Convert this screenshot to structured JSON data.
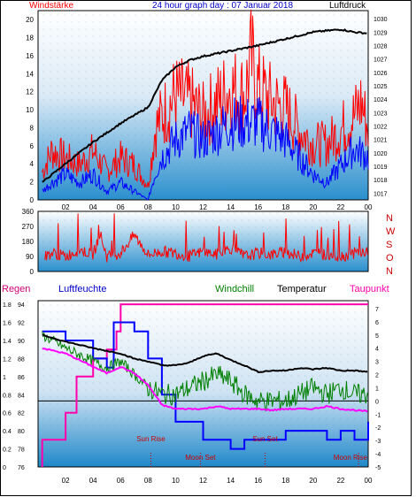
{
  "header": {
    "left_label": "Windstärke",
    "title": "24 hour graph day : 07 Januar 2018",
    "right_label": "Luftdruck"
  },
  "bottom_header": {
    "regen": "Regen",
    "luftfeuchte": "Luftfeuchte",
    "windchill": "Windchill",
    "temperatur": "Temperatur",
    "taupunkt": "Taupunkt"
  },
  "colors": {
    "wind_gust": "#ff0000",
    "wind_avg": "#0000ff",
    "pressure": "#000000",
    "wind_dir": "#ff0000",
    "regen": "#ff00aa",
    "luftfeuchte": "#0000ff",
    "windchill": "#008000",
    "temperatur": "#000000",
    "taupunkt": "#ff00ff",
    "sun_moon": "#cc0000",
    "panel_top": "#ffffff",
    "panel_bottom": "#1a86c8"
  },
  "chart_data": [
    {
      "type": "line",
      "name": "wind-pressure",
      "x_ticks": [
        "02",
        "04",
        "06",
        "08",
        "10",
        "12",
        "14",
        "16",
        "18",
        "20",
        "22",
        "00"
      ],
      "y_left_ticks": [
        "0",
        "2",
        "4",
        "6",
        "8",
        "10",
        "12",
        "14",
        "16",
        "18",
        "20"
      ],
      "y_left_range": [
        0,
        21
      ],
      "y_right_ticks": [
        "1017",
        "1018",
        "1019",
        "1020",
        "1021",
        "1022",
        "1023",
        "1024",
        "1025",
        "1026",
        "1027",
        "1028",
        "1029",
        "1030"
      ],
      "y_right_range": [
        1016.5,
        1030.6
      ],
      "x_range": [
        0,
        24
      ],
      "pressure": {
        "x": [
          0.3,
          2,
          4,
          6,
          8,
          9,
          10,
          11,
          12,
          14,
          16,
          18,
          20,
          22,
          23,
          24
        ],
        "y": [
          1017.8,
          1019.2,
          1020.8,
          1022.2,
          1023.4,
          1025.4,
          1026.4,
          1026.9,
          1027.2,
          1027.6,
          1028.0,
          1028.5,
          1029.0,
          1029.2,
          1029.0,
          1028.9
        ]
      },
      "wind_gust": {
        "x": [
          0.3,
          1,
          2,
          3,
          4,
          5,
          6,
          7,
          8,
          8.5,
          9,
          10,
          11,
          12,
          13,
          14,
          15,
          15.5,
          16,
          17,
          18,
          19,
          20,
          21,
          22,
          23,
          23.5,
          24
        ],
        "y": [
          4,
          7,
          6,
          5,
          7,
          4,
          6,
          5,
          2,
          10,
          12,
          15,
          14,
          12,
          14,
          16,
          15,
          20,
          16,
          14,
          13,
          10,
          8,
          8,
          10,
          12,
          14,
          10
        ]
      },
      "wind_avg": {
        "x": [
          0.3,
          1,
          2,
          3,
          4,
          5,
          6,
          7,
          8,
          8.5,
          9,
          10,
          11,
          12,
          13,
          14,
          15,
          16,
          17,
          18,
          19,
          20,
          21,
          22,
          23,
          24
        ],
        "y": [
          1,
          2,
          3,
          2,
          3,
          1,
          2,
          1,
          0,
          3,
          5,
          7,
          8,
          7,
          8,
          9,
          9,
          9,
          8,
          7,
          5,
          3,
          2,
          4,
          6,
          5
        ]
      }
    },
    {
      "type": "scatter",
      "name": "wind-direction",
      "y_ticks": [
        "0",
        "90",
        "180",
        "270",
        "360"
      ],
      "y_range": [
        0,
        360
      ],
      "compass_labels": [
        "N",
        "W",
        "S",
        "O",
        "N"
      ],
      "x": [
        0.5,
        1,
        2,
        3,
        4,
        4.5,
        5,
        6,
        7,
        8,
        9,
        10,
        11,
        12,
        13,
        14,
        15,
        16,
        17,
        18,
        19,
        20,
        21,
        22,
        23,
        24
      ],
      "y": [
        90,
        110,
        90,
        130,
        100,
        230,
        90,
        110,
        220,
        100,
        120,
        110,
        90,
        120,
        100,
        140,
        90,
        110,
        100,
        120,
        90,
        110,
        100,
        90,
        110,
        120
      ]
    },
    {
      "type": "line",
      "name": "temperature-humidity",
      "y_regen_ticks": [
        "0",
        "0.2",
        "0.4",
        "0.6",
        "0.8",
        "1",
        "1.2",
        "1.4",
        "1.6",
        "1.8"
      ],
      "y_regen_range": [
        0,
        1.84
      ],
      "y_humidity_ticks": [
        "76",
        "78",
        "80",
        "82",
        "84",
        "86",
        "88",
        "90",
        "92",
        "94"
      ],
      "y_humidity_range": [
        76,
        94.4
      ],
      "y_temp_ticks": [
        "-5",
        "-4",
        "-3",
        "-2",
        "-1",
        "0",
        "1",
        "2",
        "3",
        "4",
        "5",
        "6",
        "7"
      ],
      "y_temp_range": [
        -5,
        7.6
      ],
      "regen": {
        "x": [
          0.3,
          0.7,
          2,
          2.8,
          4,
          5,
          5.7,
          6,
          24
        ],
        "y": [
          0.3,
          0.3,
          0.6,
          1,
          1.2,
          1.3,
          1.5,
          1.8,
          1.8
        ]
      },
      "luftfeuchte": {
        "x": [
          0.3,
          2,
          4,
          5,
          5.5,
          6,
          7,
          8,
          9,
          10,
          11,
          12,
          13,
          14,
          15,
          16,
          17,
          18,
          19,
          20,
          21,
          22,
          23,
          24
        ],
        "y": [
          91,
          90,
          88,
          87,
          92,
          92,
          91,
          88,
          84,
          81,
          81,
          79,
          79,
          78,
          79,
          79,
          79,
          80,
          80,
          80,
          79,
          80,
          79,
          81
        ]
      },
      "windchill": {
        "x": [
          0.3,
          2,
          4,
          5,
          6,
          7,
          8,
          9,
          10,
          11,
          12,
          13,
          14,
          15,
          16,
          17,
          18,
          19,
          20,
          21,
          22,
          23,
          24
        ],
        "y": [
          5,
          4,
          3,
          2.5,
          3,
          2,
          1,
          0.5,
          0.5,
          1,
          1.5,
          2,
          1.5,
          0.5,
          0,
          0,
          0,
          0.5,
          1,
          0.5,
          1,
          0.5,
          0.5
        ]
      },
      "temperatur": {
        "x": [
          0.3,
          2,
          4,
          6,
          7,
          8,
          9,
          10,
          11,
          12,
          13,
          14,
          15,
          16,
          17,
          18,
          19,
          20,
          21,
          22,
          23,
          24
        ],
        "y": [
          5,
          4.5,
          4,
          3.6,
          3.2,
          3,
          2.7,
          2.7,
          2.9,
          3.4,
          3.6,
          3.1,
          2.7,
          2.2,
          2.3,
          2.3,
          2.5,
          2.4,
          2.5,
          2.3,
          2.3,
          2.2
        ]
      },
      "taupunkt": {
        "x": [
          0.3,
          2,
          4,
          5,
          6,
          7,
          8,
          9,
          10,
          11,
          12,
          13,
          14,
          15,
          16,
          17,
          18,
          19,
          20,
          21,
          22,
          23,
          24
        ],
        "y": [
          4,
          3.6,
          2.6,
          2.1,
          2.6,
          2.1,
          1.2,
          -0.3,
          -0.6,
          -0.6,
          -0.6,
          -0.4,
          -0.6,
          -0.6,
          -0.6,
          -0.7,
          -0.6,
          -0.6,
          -0.6,
          -0.4,
          -0.6,
          -0.7,
          -0.8
        ]
      },
      "reference_line_temp": 0,
      "events": [
        {
          "label": "Sun Rise",
          "x": 8.2,
          "row": "upper"
        },
        {
          "label": "Moon Set",
          "x": 11.8,
          "row": "lower"
        },
        {
          "label": "Sun Set",
          "x": 16.5,
          "row": "upper"
        },
        {
          "label": "Moon Rise",
          "x": 23.3,
          "row": "lower"
        }
      ]
    }
  ]
}
